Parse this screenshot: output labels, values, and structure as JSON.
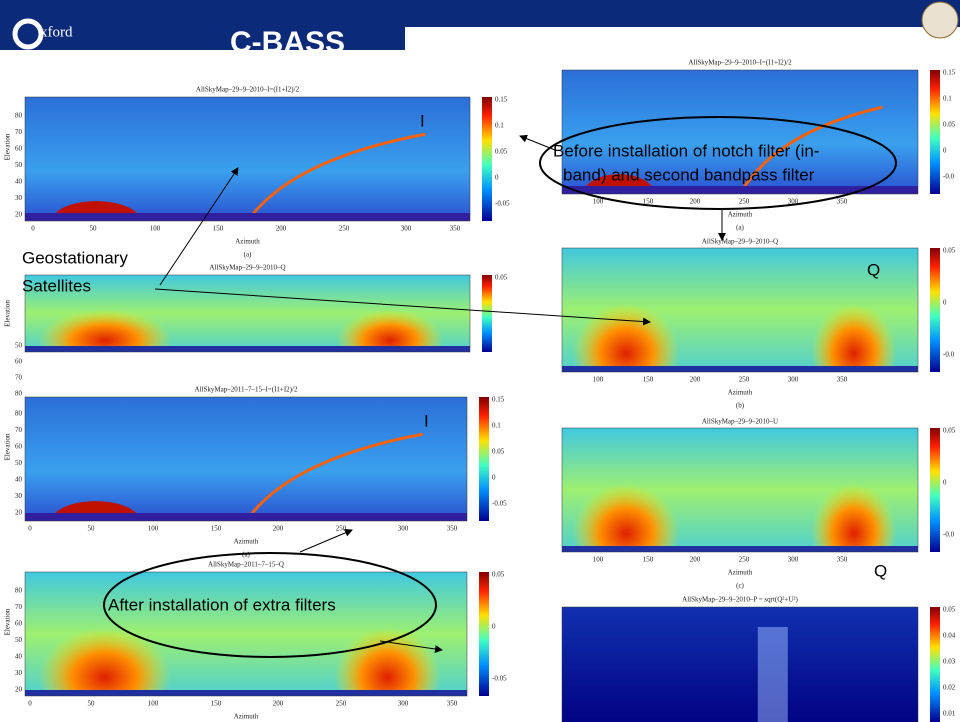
{
  "header": {
    "logo_text": "xford",
    "title": "C-BASS"
  },
  "panels": [
    {
      "title": "AllSkyMap–29–9–2010–I=(I1+I2)/2",
      "xlabel": "Azimuth",
      "ylabel": "Elevation",
      "caption": "(a)",
      "xticks": [
        "0",
        "50",
        "100",
        "150",
        "200",
        "250",
        "300",
        "350"
      ],
      "yticks": [
        "20",
        "30",
        "40",
        "50",
        "60",
        "70",
        "80"
      ],
      "cbar_ticks": [
        "0.15",
        "0.1",
        "0.05",
        "0",
        "-0.05"
      ]
    },
    {
      "title": "AllSkyMap–29–9–2010–Q",
      "ylabel": "Elevation",
      "yticks": [
        "50",
        "60",
        "70",
        "80"
      ],
      "cbar_ticks": [
        "0.05"
      ]
    },
    {
      "title": "AllSkyMap–2011–7–15–I=(I1+I2)/2",
      "xlabel": "Azimuth",
      "ylabel": "Elevation",
      "caption": "(a)",
      "xticks": [
        "0",
        "50",
        "100",
        "150",
        "200",
        "250",
        "300",
        "350"
      ],
      "yticks": [
        "20",
        "30",
        "40",
        "50",
        "60",
        "70",
        "80"
      ],
      "cbar_ticks": [
        "0.15",
        "0.1",
        "0.05",
        "0",
        "-0.05"
      ]
    },
    {
      "title": "AllSkyMap–2011–7–15–Q",
      "xlabel": "Azimuth",
      "ylabel": "Elevation",
      "xticks": [
        "0",
        "50",
        "100",
        "150",
        "200",
        "250",
        "300",
        "350"
      ],
      "yticks": [
        "20",
        "30",
        "40",
        "50",
        "60",
        "70",
        "80"
      ],
      "cbar_ticks": [
        "0.05",
        "0",
        "-0.05"
      ]
    },
    {
      "title": "AllSkyMap–29–9–2010–I=(I1+I2)/2",
      "xlabel": "Azimuth",
      "caption": "(a)",
      "xticks": [
        "100",
        "150",
        "200",
        "250",
        "300",
        "350"
      ],
      "cbar_ticks": [
        "0.15",
        "0.1",
        "0.05",
        "0",
        "-0.0"
      ]
    },
    {
      "title": "AllSkyMap–29–9–2010–Q",
      "xlabel": "Azimuth",
      "caption": "(b)",
      "xticks": [
        "100",
        "150",
        "200",
        "250",
        "300",
        "350"
      ],
      "cbar_ticks": [
        "0.05",
        "0",
        "-0.0"
      ]
    },
    {
      "title": "AllSkyMap–29–9–2010–U",
      "xlabel": "Azimuth",
      "caption": "(c)",
      "xticks": [
        "100",
        "150",
        "200",
        "250",
        "300",
        "350"
      ],
      "cbar_ticks": [
        "0.05",
        "0",
        "-0.0"
      ]
    },
    {
      "title": "AllSkyMap–29–9–2010–P = sqrt(Q²+U²)",
      "cbar_ticks": [
        "0.05",
        "0.04",
        "0.03",
        "0.02",
        "0.01"
      ]
    }
  ],
  "annotations": {
    "label_i_1": "I",
    "label_i_2": "I",
    "label_q_1": "Q",
    "label_q_2": "Q",
    "satellites": [
      "Geostationary",
      "Satellites"
    ],
    "before": [
      "Before installation of notch filter (in-",
      "band) and second bandpass filter"
    ],
    "after": "After installation of extra filters"
  }
}
